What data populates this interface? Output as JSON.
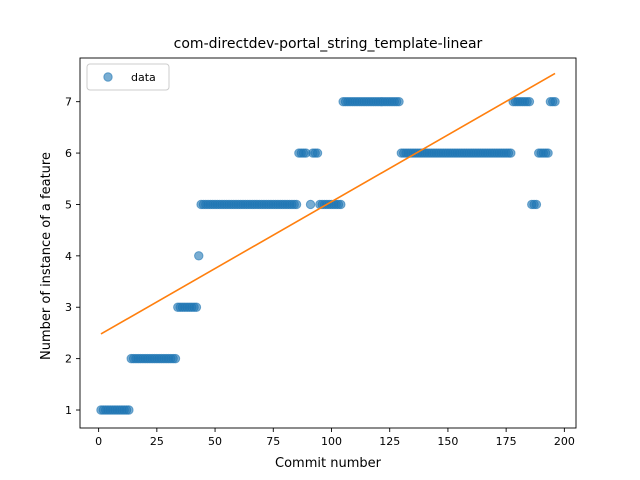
{
  "chart_data": {
    "type": "scatter",
    "title": "com-directdev-portal_string_template-linear",
    "xlabel": "Commit number",
    "ylabel": "Number of instance of a feature",
    "xlim": [
      -8,
      205
    ],
    "ylim": [
      0.65,
      7.85
    ],
    "xticks": [
      0,
      25,
      50,
      75,
      100,
      125,
      150,
      175,
      200
    ],
    "yticks": [
      1,
      2,
      3,
      4,
      5,
      6,
      7
    ],
    "legend": {
      "position": "top-left",
      "entries": [
        "data"
      ]
    },
    "colors": {
      "points": "#1f77b4",
      "fit": "#ff7f0e"
    },
    "series": [
      {
        "name": "data",
        "kind": "points",
        "segments": [
          {
            "x_start": 1,
            "x_end": 13,
            "y": 1
          },
          {
            "x_start": 14,
            "x_end": 33,
            "y": 2
          },
          {
            "x_start": 34,
            "x_end": 42,
            "y": 3
          },
          {
            "x_start": 43,
            "x_end": 43,
            "y": 4
          },
          {
            "x_start": 44,
            "x_end": 85,
            "y": 5
          },
          {
            "x_start": 86,
            "x_end": 89,
            "y": 6
          },
          {
            "x_start": 91,
            "x_end": 91,
            "y": 5
          },
          {
            "x_start": 92,
            "x_end": 94,
            "y": 6
          },
          {
            "x_start": 95,
            "x_end": 104,
            "y": 5
          },
          {
            "x_start": 105,
            "x_end": 129,
            "y": 7
          },
          {
            "x_start": 130,
            "x_end": 177,
            "y": 6
          },
          {
            "x_start": 178,
            "x_end": 185,
            "y": 7
          },
          {
            "x_start": 186,
            "x_end": 188,
            "y": 5
          },
          {
            "x_start": 189,
            "x_end": 193,
            "y": 6
          },
          {
            "x_start": 194,
            "x_end": 196,
            "y": 7
          }
        ]
      },
      {
        "name": "",
        "kind": "line",
        "x": [
          1,
          196
        ],
        "y": [
          2.48,
          7.55
        ]
      }
    ]
  }
}
